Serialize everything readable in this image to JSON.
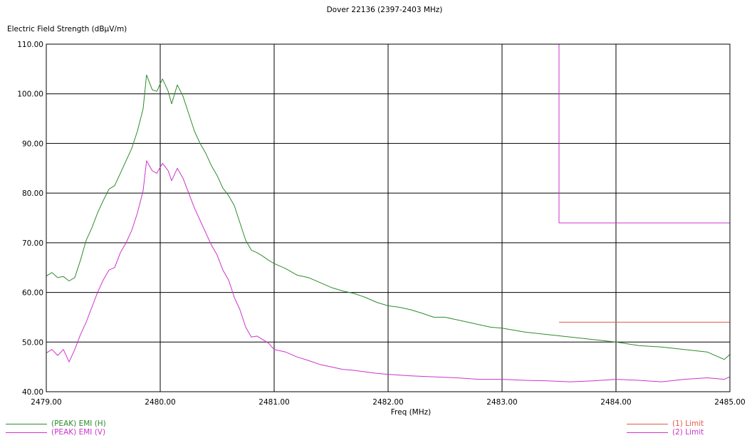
{
  "chart_data": {
    "type": "line",
    "title": "Dover 22136 (2397-2403 MHz)",
    "xlabel": "Freq (MHz)",
    "ylabel": "Electric Field Strength (dBµV/m)",
    "xlim": [
      2479.0,
      2485.0
    ],
    "ylim": [
      40.0,
      110.0
    ],
    "x_ticks": [
      "2479.00",
      "2480.00",
      "2481.00",
      "2482.00",
      "2483.00",
      "2484.00",
      "2485.00"
    ],
    "y_ticks": [
      "40.00",
      "50.00",
      "60.00",
      "70.00",
      "80.00",
      "90.00",
      "100.00",
      "110.00"
    ],
    "grid": true,
    "legend_placement": "bottom",
    "series": [
      {
        "name": "(PEAK) EMI (H)",
        "color": "#2e8b2e",
        "points": [
          [
            2479.0,
            63.3
          ],
          [
            2479.05,
            64.0
          ],
          [
            2479.1,
            63.0
          ],
          [
            2479.15,
            63.2
          ],
          [
            2479.2,
            62.3
          ],
          [
            2479.25,
            63.0
          ],
          [
            2479.3,
            66.5
          ],
          [
            2479.35,
            70.5
          ],
          [
            2479.4,
            73.0
          ],
          [
            2479.45,
            76.0
          ],
          [
            2479.5,
            78.5
          ],
          [
            2479.55,
            80.8
          ],
          [
            2479.6,
            81.5
          ],
          [
            2479.65,
            84.0
          ],
          [
            2479.7,
            86.5
          ],
          [
            2479.75,
            89.0
          ],
          [
            2479.8,
            92.5
          ],
          [
            2479.85,
            97.0
          ],
          [
            2479.88,
            103.8
          ],
          [
            2479.93,
            100.8
          ],
          [
            2479.97,
            100.5
          ],
          [
            2480.02,
            103.0
          ],
          [
            2480.07,
            100.5
          ],
          [
            2480.1,
            98.0
          ],
          [
            2480.15,
            101.8
          ],
          [
            2480.2,
            99.5
          ],
          [
            2480.25,
            96.0
          ],
          [
            2480.3,
            92.5
          ],
          [
            2480.35,
            90.0
          ],
          [
            2480.4,
            88.0
          ],
          [
            2480.45,
            85.5
          ],
          [
            2480.5,
            83.5
          ],
          [
            2480.55,
            81.0
          ],
          [
            2480.6,
            79.5
          ],
          [
            2480.65,
            77.5
          ],
          [
            2480.7,
            74.0
          ],
          [
            2480.75,
            70.5
          ],
          [
            2480.8,
            68.5
          ],
          [
            2480.85,
            68.0
          ],
          [
            2480.9,
            67.3
          ],
          [
            2480.95,
            66.5
          ],
          [
            2481.0,
            65.8
          ],
          [
            2481.1,
            64.8
          ],
          [
            2481.2,
            63.5
          ],
          [
            2481.3,
            63.0
          ],
          [
            2481.4,
            62.0
          ],
          [
            2481.5,
            61.0
          ],
          [
            2481.6,
            60.3
          ],
          [
            2481.7,
            59.8
          ],
          [
            2481.8,
            59.0
          ],
          [
            2481.9,
            58.0
          ],
          [
            2482.0,
            57.3
          ],
          [
            2482.1,
            57.0
          ],
          [
            2482.2,
            56.5
          ],
          [
            2482.3,
            55.8
          ],
          [
            2482.4,
            55.0
          ],
          [
            2482.5,
            55.0
          ],
          [
            2482.6,
            54.5
          ],
          [
            2482.7,
            54.0
          ],
          [
            2482.8,
            53.5
          ],
          [
            2482.9,
            53.0
          ],
          [
            2483.0,
            52.8
          ],
          [
            2483.2,
            52.0
          ],
          [
            2483.4,
            51.5
          ],
          [
            2483.6,
            51.0
          ],
          [
            2483.8,
            50.5
          ],
          [
            2484.0,
            50.0
          ],
          [
            2484.2,
            49.3
          ],
          [
            2484.4,
            49.0
          ],
          [
            2484.6,
            48.5
          ],
          [
            2484.8,
            48.0
          ],
          [
            2484.95,
            46.5
          ],
          [
            2485.0,
            47.5
          ]
        ]
      },
      {
        "name": "(PEAK) EMI (V)",
        "color": "#cc33cc",
        "points": [
          [
            2479.0,
            47.8
          ],
          [
            2479.05,
            48.5
          ],
          [
            2479.1,
            47.3
          ],
          [
            2479.15,
            48.5
          ],
          [
            2479.2,
            46.0
          ],
          [
            2479.25,
            48.5
          ],
          [
            2479.3,
            51.5
          ],
          [
            2479.35,
            54.0
          ],
          [
            2479.4,
            57.0
          ],
          [
            2479.45,
            60.0
          ],
          [
            2479.5,
            62.5
          ],
          [
            2479.55,
            64.5
          ],
          [
            2479.6,
            65.0
          ],
          [
            2479.65,
            68.0
          ],
          [
            2479.7,
            70.0
          ],
          [
            2479.75,
            72.5
          ],
          [
            2479.8,
            76.0
          ],
          [
            2479.85,
            80.5
          ],
          [
            2479.88,
            86.5
          ],
          [
            2479.93,
            84.5
          ],
          [
            2479.97,
            84.0
          ],
          [
            2480.02,
            86.0
          ],
          [
            2480.07,
            84.5
          ],
          [
            2480.1,
            82.5
          ],
          [
            2480.15,
            85.0
          ],
          [
            2480.2,
            83.0
          ],
          [
            2480.25,
            80.0
          ],
          [
            2480.3,
            77.0
          ],
          [
            2480.35,
            74.5
          ],
          [
            2480.4,
            72.0
          ],
          [
            2480.45,
            69.5
          ],
          [
            2480.5,
            67.5
          ],
          [
            2480.55,
            64.5
          ],
          [
            2480.6,
            62.5
          ],
          [
            2480.65,
            59.0
          ],
          [
            2480.7,
            56.5
          ],
          [
            2480.75,
            53.0
          ],
          [
            2480.8,
            51.0
          ],
          [
            2480.85,
            51.2
          ],
          [
            2480.9,
            50.5
          ],
          [
            2480.95,
            49.8
          ],
          [
            2481.0,
            48.5
          ],
          [
            2481.1,
            48.0
          ],
          [
            2481.2,
            47.0
          ],
          [
            2481.3,
            46.3
          ],
          [
            2481.4,
            45.5
          ],
          [
            2481.5,
            45.0
          ],
          [
            2481.6,
            44.5
          ],
          [
            2481.7,
            44.3
          ],
          [
            2481.8,
            44.0
          ],
          [
            2481.9,
            43.7
          ],
          [
            2482.0,
            43.5
          ],
          [
            2482.2,
            43.2
          ],
          [
            2482.4,
            43.0
          ],
          [
            2482.6,
            42.8
          ],
          [
            2482.8,
            42.5
          ],
          [
            2483.0,
            42.5
          ],
          [
            2483.2,
            42.3
          ],
          [
            2483.4,
            42.2
          ],
          [
            2483.6,
            42.0
          ],
          [
            2483.8,
            42.2
          ],
          [
            2484.0,
            42.5
          ],
          [
            2484.2,
            42.3
          ],
          [
            2484.4,
            42.0
          ],
          [
            2484.6,
            42.5
          ],
          [
            2484.8,
            42.8
          ],
          [
            2484.95,
            42.5
          ],
          [
            2485.0,
            43.0
          ]
        ]
      },
      {
        "name": "(1) Limit",
        "color": "#e05a4a",
        "points": [
          [
            2483.5,
            54.0
          ],
          [
            2485.0,
            54.0
          ]
        ]
      },
      {
        "name": "(2) Limit",
        "color": "#cc33cc",
        "points": [
          [
            2483.5,
            110.0
          ],
          [
            2483.5,
            74.0
          ],
          [
            2485.0,
            74.0
          ]
        ]
      }
    ]
  }
}
